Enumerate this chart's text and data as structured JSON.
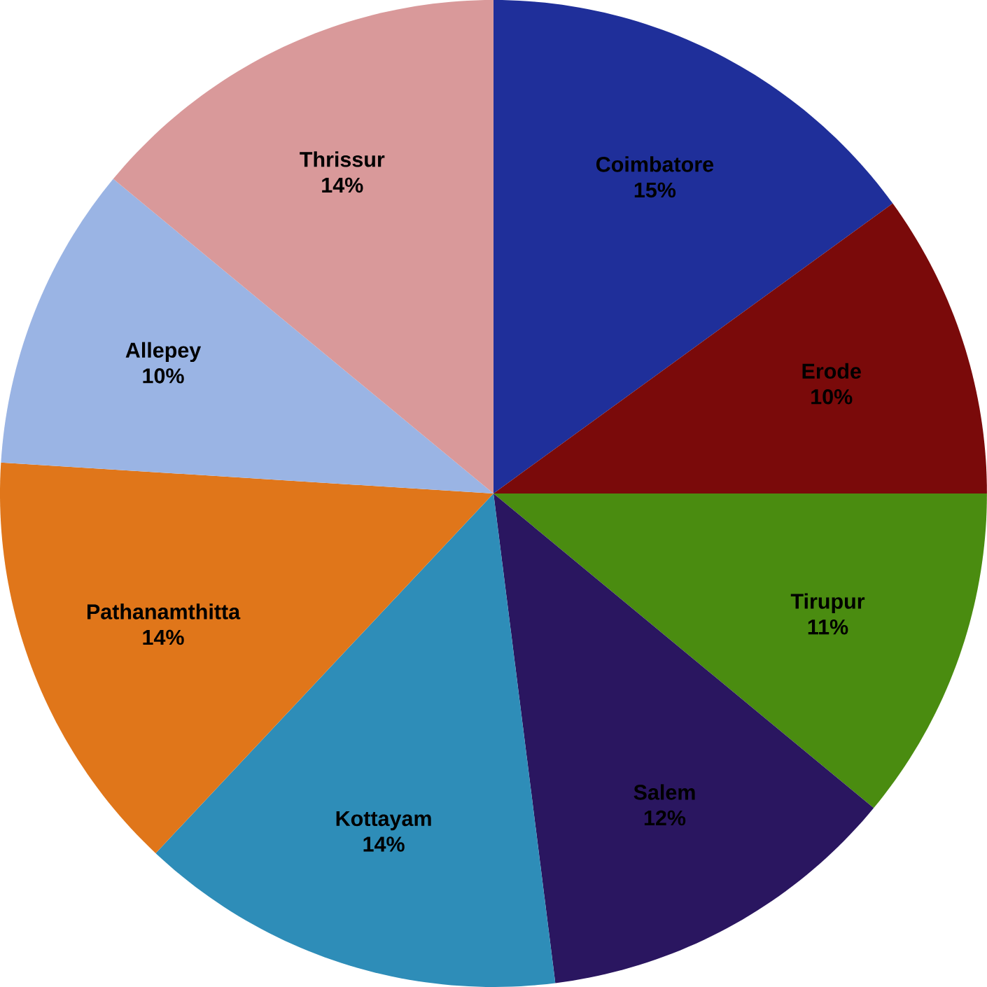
{
  "chart_data": {
    "type": "pie",
    "categories": [
      "Coimbatore",
      "Erode",
      "Tirupur",
      "Salem",
      "Kottayam",
      "Pathanamthitta",
      "Allepey",
      "Thrissur"
    ],
    "values": [
      15,
      10,
      11,
      12,
      14,
      14,
      10,
      14
    ],
    "value_labels": [
      "15%",
      "10%",
      "11%",
      "12%",
      "14%",
      "14%",
      "10%",
      "14%"
    ],
    "colors": [
      "#1f2f9a",
      "#7a0a0a",
      "#4a8c10",
      "#2a1660",
      "#2e8db8",
      "#e0761a",
      "#9ab4e4",
      "#d9999a"
    ]
  }
}
